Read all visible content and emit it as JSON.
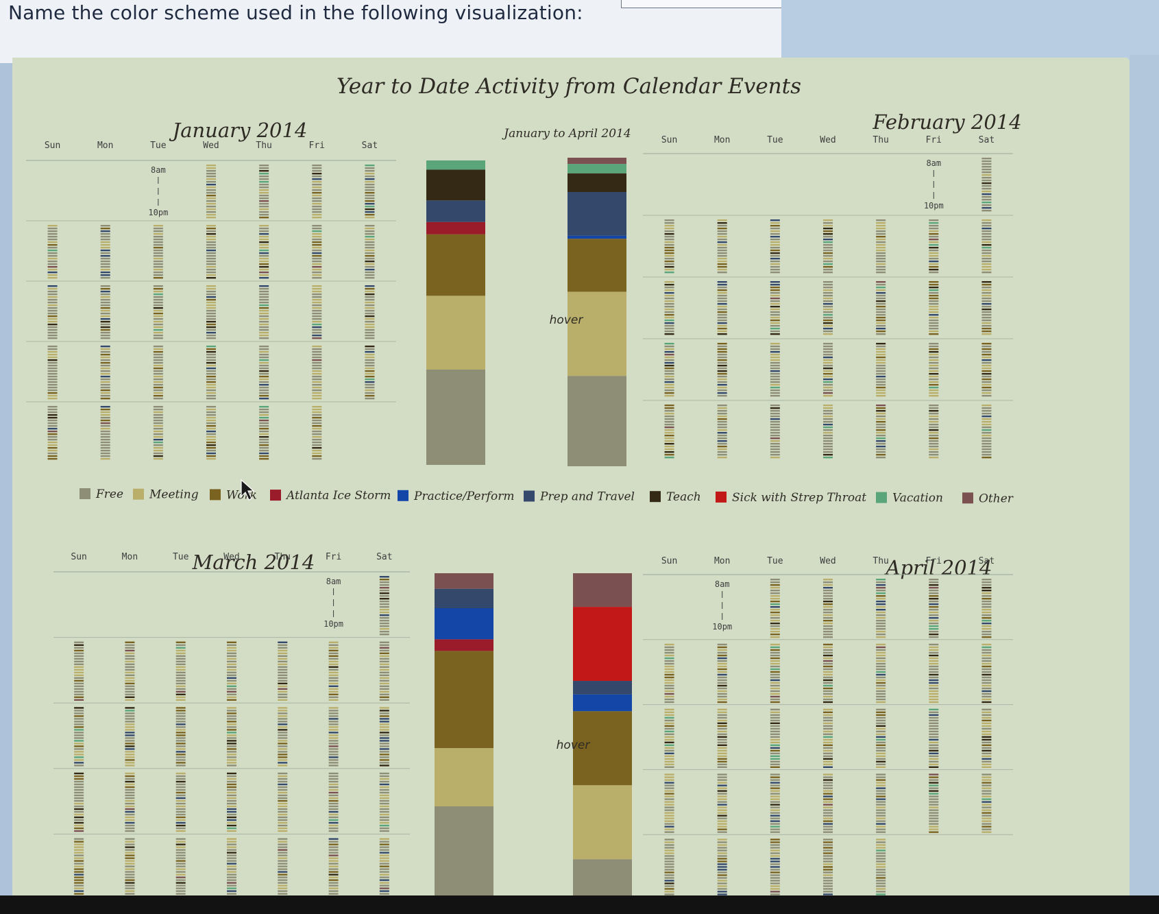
{
  "question": {
    "text": "Name the color scheme used in the following visualization:"
  },
  "chart": {
    "title": "Year to Date Activity from Calendar Events",
    "summary_title": "January to April 2014",
    "hover_label": "hover",
    "day_headers": [
      "Sun",
      "Mon",
      "Tue",
      "Wed",
      "Thu",
      "Fri",
      "Sat"
    ],
    "time_start": "8am",
    "time_end": "10pm",
    "months": [
      {
        "name": "January 2014"
      },
      {
        "name": "February 2014"
      },
      {
        "name": "March 2014"
      },
      {
        "name": "April 2014"
      }
    ],
    "legend": [
      {
        "label": "Free",
        "color": "#8e8e77"
      },
      {
        "label": "Meeting",
        "color": "#b9ae6a"
      },
      {
        "label": "Work",
        "color": "#7a6320"
      },
      {
        "label": "Atlanta Ice Storm",
        "color": "#9a1c2a"
      },
      {
        "label": "Practice/Perform",
        "color": "#1446a8"
      },
      {
        "label": "Prep and Travel",
        "color": "#34486c"
      },
      {
        "label": "Teach",
        "color": "#332914"
      },
      {
        "label": "Sick with Strep Throat",
        "color": "#c21818"
      },
      {
        "label": "Vacation",
        "color": "#5aa57a"
      },
      {
        "label": "Other",
        "color": "#7a5050"
      }
    ]
  },
  "chart_data": {
    "type": "bar",
    "title": "Year to Date Activity from Calendar Events",
    "subtitle": "January to April 2014",
    "categories": [
      "Free",
      "Meeting",
      "Work",
      "Atlanta Ice Storm",
      "Practice/Perform",
      "Prep and Travel",
      "Teach",
      "Sick with Strep Throat",
      "Vacation",
      "Other"
    ],
    "series": [
      {
        "name": "January 2014",
        "values": [
          31,
          24,
          20,
          4,
          0,
          7,
          10,
          0,
          3,
          0
        ]
      },
      {
        "name": "February 2014",
        "values": [
          29,
          27,
          17,
          0,
          1,
          14,
          6,
          0,
          3,
          2
        ]
      },
      {
        "name": "March 2014",
        "values": [
          24,
          15,
          25,
          3,
          8,
          5,
          0,
          0,
          0,
          4
        ]
      },
      {
        "name": "April 2014",
        "values": [
          12,
          22,
          22,
          0,
          5,
          4,
          0,
          22,
          0,
          10
        ]
      }
    ]
  }
}
